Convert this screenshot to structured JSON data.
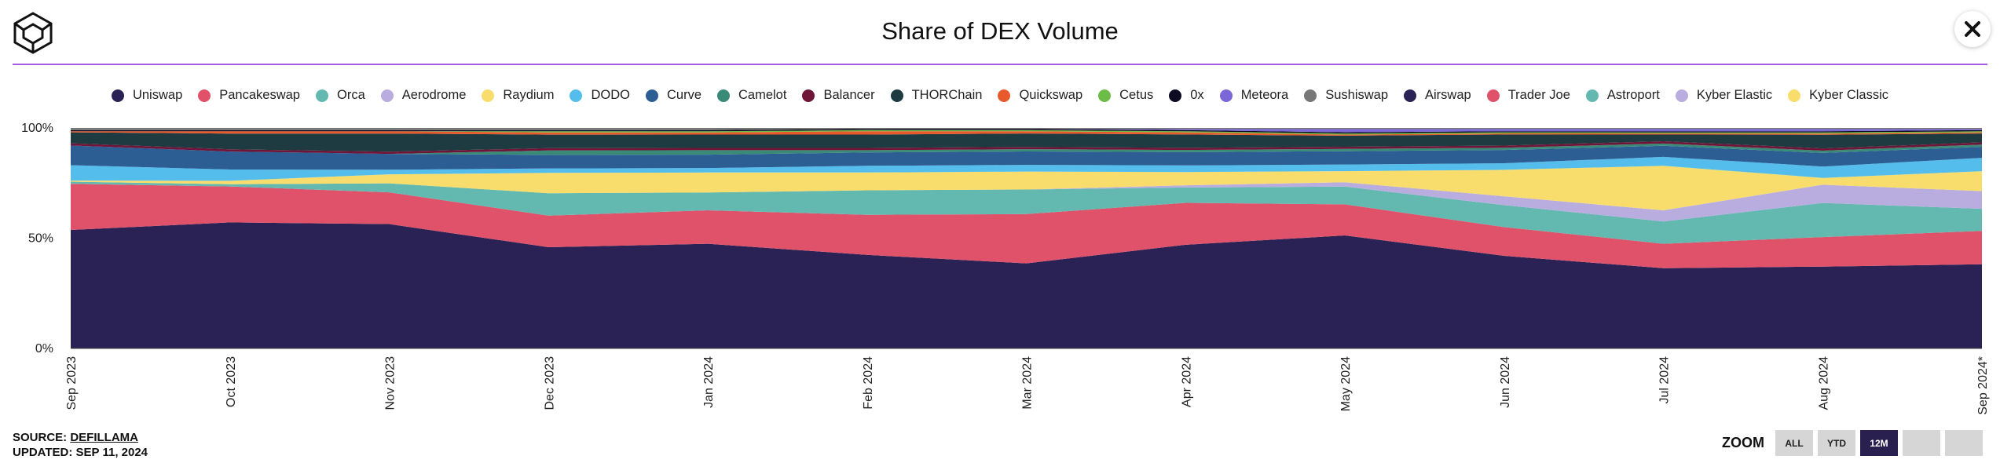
{
  "header": {
    "title": "Share of DEX Volume",
    "logo_icon": "cube-logo-icon",
    "close_icon": "close-icon"
  },
  "footer": {
    "source_label": "SOURCE: ",
    "source_name": "DEFILLAMA",
    "updated": "UPDATED: SEP 11, 2024"
  },
  "zoom": {
    "label": "ZOOM",
    "buttons": [
      {
        "label": "ALL",
        "active": false
      },
      {
        "label": "YTD",
        "active": false
      },
      {
        "label": "12M",
        "active": true
      },
      {
        "label": "",
        "active": false
      },
      {
        "label": "",
        "active": false
      }
    ]
  },
  "chart_data": {
    "type": "area",
    "stacking": "percent",
    "title": "Share of DEX Volume",
    "xlabel": "",
    "ylabel": "",
    "ylim": [
      0,
      100
    ],
    "y_ticks": [
      "0%",
      "50%",
      "100%"
    ],
    "grid": false,
    "legend_position": "top-center",
    "categories": [
      "Sep 2023",
      "Oct 2023",
      "Nov 2023",
      "Dec 2023",
      "Jan 2024",
      "Feb 2024",
      "Mar 2024",
      "Apr 2024",
      "May 2024",
      "Jun 2024",
      "Jul 2024",
      "Aug 2024",
      "Sep 2024*"
    ],
    "series": [
      {
        "name": "Uniswap",
        "color": "#2a2255",
        "values": [
          54,
          56,
          55,
          45,
          47,
          42,
          38,
          47,
          51,
          42,
          36,
          36,
          38
        ]
      },
      {
        "name": "Pancakeswap",
        "color": "#e0516a",
        "values": [
          21,
          16,
          14,
          14,
          15,
          18,
          22,
          19,
          14,
          13,
          11,
          13,
          15
        ]
      },
      {
        "name": "Orca",
        "color": "#63b9b0",
        "values": [
          1,
          1,
          4,
          10,
          8,
          11,
          11,
          7,
          8,
          10,
          10,
          15,
          10
        ]
      },
      {
        "name": "Aerodrome",
        "color": "#b9addf",
        "values": [
          0,
          0,
          0,
          0,
          0,
          0,
          0,
          1,
          2,
          4,
          5,
          8,
          8
        ]
      },
      {
        "name": "Raydium",
        "color": "#f8dd6d",
        "values": [
          0.5,
          1.5,
          4,
          9,
          9,
          8,
          8,
          6,
          5,
          12,
          20,
          3,
          9
        ]
      },
      {
        "name": "DODO",
        "color": "#54bdeb",
        "values": [
          7,
          5,
          2,
          2,
          2,
          3,
          3,
          3,
          3,
          3,
          4,
          5,
          6
        ]
      },
      {
        "name": "Curve",
        "color": "#2c5e94",
        "values": [
          9,
          8,
          7,
          6,
          6,
          6,
          6,
          6,
          6,
          6,
          5,
          6,
          5
        ]
      },
      {
        "name": "Camelot",
        "color": "#3a8a78",
        "values": [
          0,
          0,
          0,
          2,
          2,
          1,
          1,
          1,
          1,
          1,
          1,
          1,
          1
        ]
      },
      {
        "name": "Balancer",
        "color": "#6e1538",
        "values": [
          1,
          1,
          1,
          1,
          1,
          1,
          1,
          1,
          1,
          1,
          1,
          1,
          1
        ]
      },
      {
        "name": "THORChain",
        "color": "#1d3b41",
        "values": [
          5,
          7,
          8,
          6,
          6,
          6,
          6,
          6,
          5,
          5,
          3,
          6,
          4
        ]
      },
      {
        "name": "Quickswap",
        "color": "#e85a2b",
        "values": [
          0.5,
          1,
          1,
          1,
          1,
          1.5,
          1,
          1,
          0.5,
          0.5,
          0.5,
          0.5,
          0.5
        ]
      },
      {
        "name": "Cetus",
        "color": "#6dbc45",
        "values": [
          0,
          0,
          0,
          0.5,
          0.5,
          0.5,
          0.5,
          0.5,
          0.5,
          0.5,
          0.5,
          0.5,
          0.5
        ]
      },
      {
        "name": "0x",
        "color": "#0c0b22",
        "values": [
          0.5,
          0.5,
          0.5,
          0.5,
          0.5,
          0.5,
          0.5,
          0.5,
          0.5,
          0.5,
          0.5,
          0.5,
          0.5
        ]
      },
      {
        "name": "Meteora",
        "color": "#7b67d8",
        "values": [
          0,
          0,
          0,
          0,
          0,
          0,
          0,
          0.5,
          1.5,
          1,
          1,
          1,
          0.5
        ]
      },
      {
        "name": "Sushiswap",
        "color": "#777777",
        "values": [
          1,
          1,
          1,
          1,
          1,
          0.5,
          0.5,
          0.5,
          0.5,
          0.5,
          0.5,
          0.5,
          0.5
        ]
      },
      {
        "name": "Airswap",
        "color": "#2a2255",
        "values": [
          0,
          0,
          0,
          0,
          0,
          0,
          0,
          0,
          0,
          0,
          0,
          0,
          0
        ]
      },
      {
        "name": "Trader Joe",
        "color": "#e0516a",
        "values": [
          0,
          0,
          0,
          0,
          0,
          0,
          0,
          0,
          0,
          0,
          0,
          0,
          0
        ]
      },
      {
        "name": "Astroport",
        "color": "#63b9b0",
        "values": [
          0,
          0,
          0,
          0,
          0,
          0,
          0,
          0,
          0,
          0,
          0,
          0,
          0
        ]
      },
      {
        "name": "Kyber Elastic",
        "color": "#b9addf",
        "values": [
          0,
          0,
          0,
          0,
          0,
          0,
          0,
          0,
          0,
          0,
          0,
          0,
          0
        ]
      },
      {
        "name": "Kyber Classic",
        "color": "#f8dd6d",
        "values": [
          0,
          0,
          0,
          0,
          0,
          0,
          0,
          0,
          0,
          0,
          0,
          0,
          0
        ]
      }
    ]
  }
}
